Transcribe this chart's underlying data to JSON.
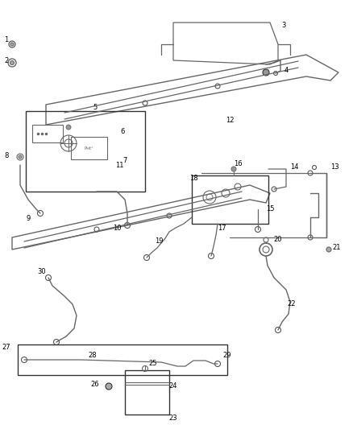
{
  "bg_color": "#ffffff",
  "line_color": "#666666",
  "dark_color": "#333333",
  "label_color": "#000000",
  "fig_w": 4.38,
  "fig_h": 5.33,
  "dpi": 100
}
